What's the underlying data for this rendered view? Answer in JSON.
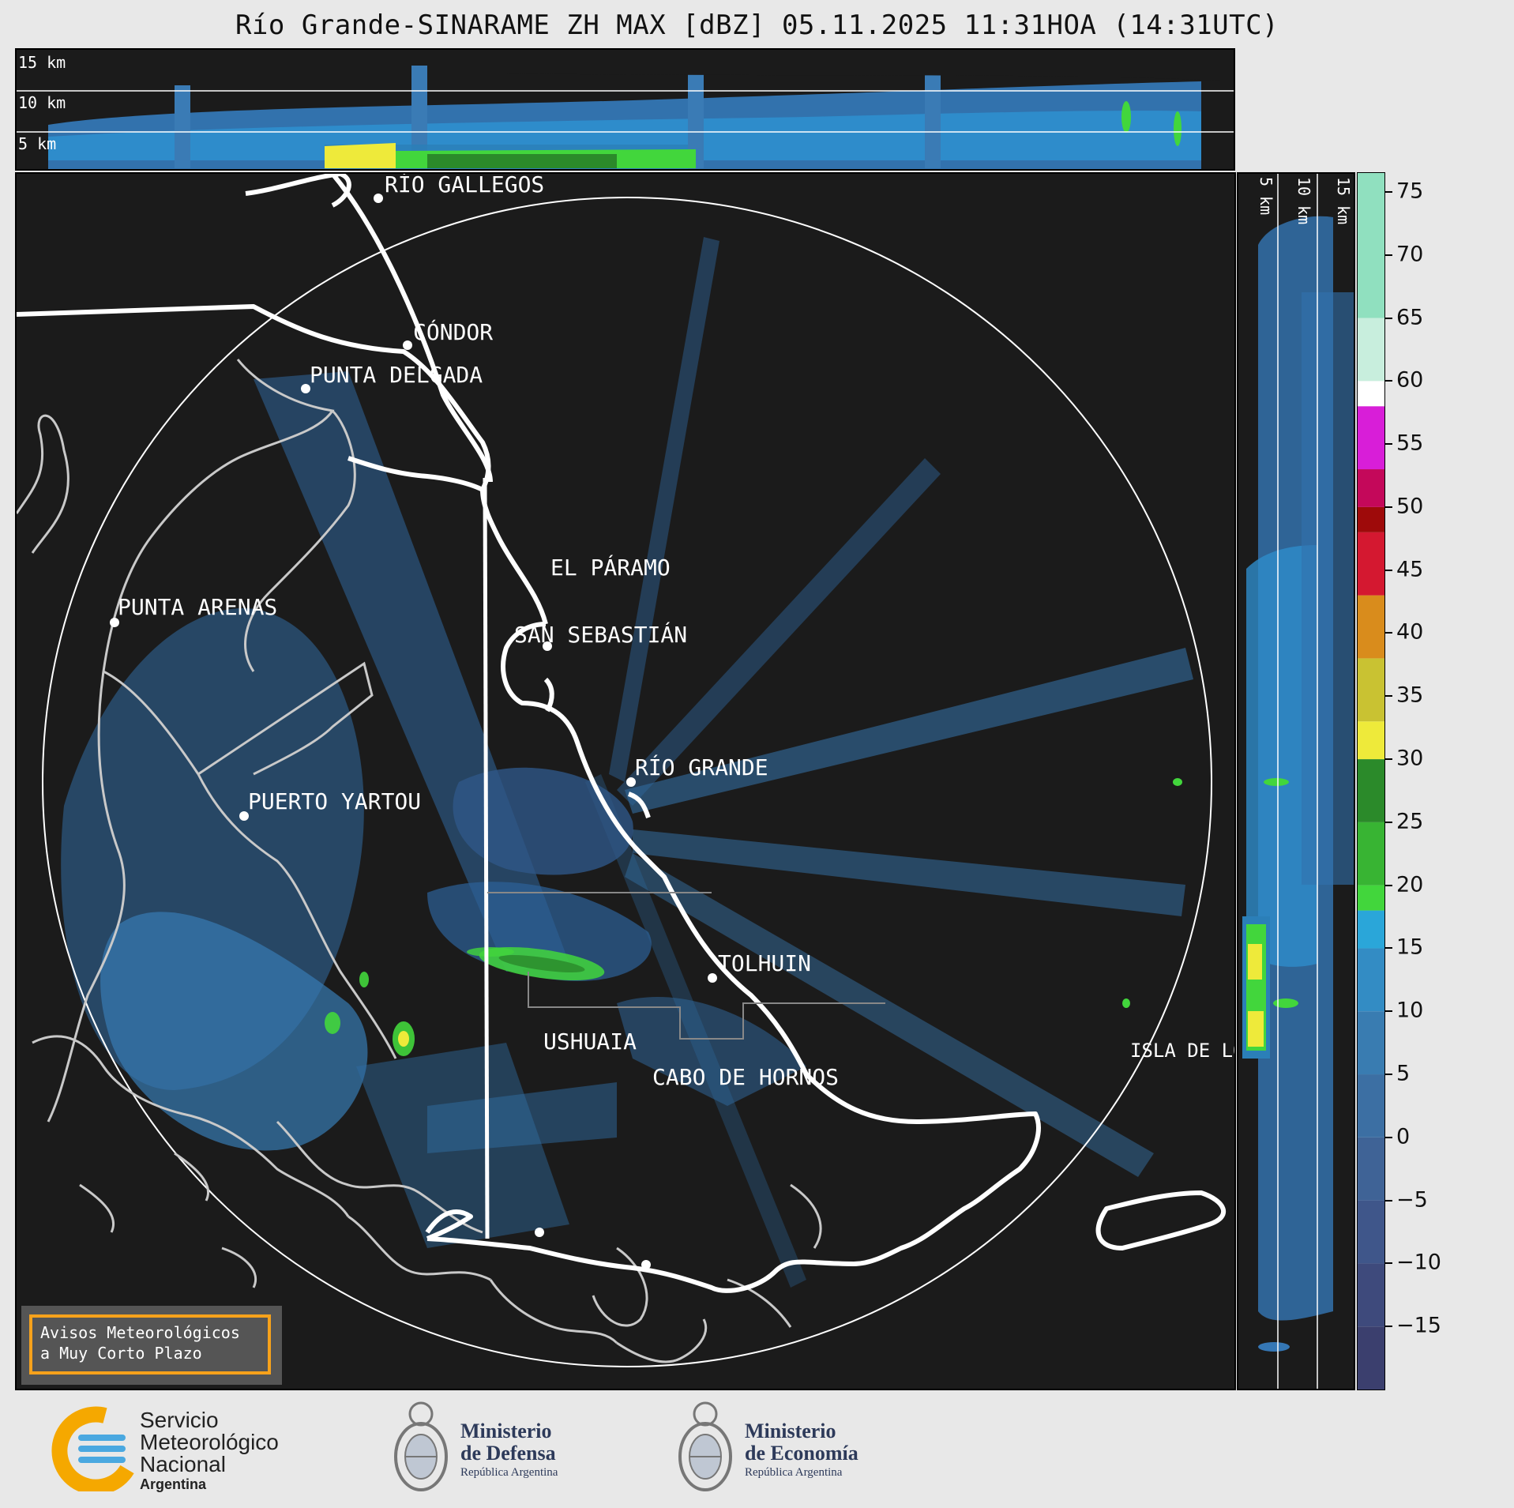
{
  "title": "Río Grande-SINARAME ZH MAX [dBZ] 05.11.2025 11:31HOA (14:31UTC)",
  "top_panel": {
    "height_labels": [
      "15 km",
      "10 km",
      "5 km"
    ]
  },
  "side_panel": {
    "height_labels": [
      "5 km",
      "10 km",
      "15 km"
    ]
  },
  "map": {
    "places": [
      "RÍO GALLEGOS",
      "CÓNDOR",
      "PUNTA DELGADA",
      "EL PÁRAMO",
      "SAN SEBASTIÁN",
      "PUNTA ARENAS",
      "RÍO GRANDE",
      "PUERTO YARTOU",
      "TOLHUIN",
      "USHUAIA",
      "CABO DE HORNOS",
      "ISLA DE LOS ESTADOS"
    ]
  },
  "colorbar": {
    "unit": "dBZ",
    "min": -20,
    "max": 76.5,
    "ticks": [
      "75",
      "70",
      "65",
      "60",
      "55",
      "50",
      "45",
      "40",
      "35",
      "30",
      "25",
      "20",
      "15",
      "10",
      "5",
      "0",
      "−5",
      "−10",
      "−15"
    ],
    "tick_values": [
      75,
      70,
      65,
      60,
      55,
      50,
      45,
      40,
      35,
      30,
      25,
      20,
      15,
      10,
      5,
      0,
      -5,
      -10,
      -15
    ],
    "stops": [
      {
        "from": -20,
        "to": -15,
        "color": "#3b3f6e"
      },
      {
        "from": -15,
        "to": -10,
        "color": "#3e4a7c"
      },
      {
        "from": -10,
        "to": -5,
        "color": "#3f568a"
      },
      {
        "from": -5,
        "to": 0,
        "color": "#3f6396"
      },
      {
        "from": 0,
        "to": 5,
        "color": "#3c6fa3"
      },
      {
        "from": 5,
        "to": 10,
        "color": "#397cb1"
      },
      {
        "from": 10,
        "to": 15,
        "color": "#338cc4"
      },
      {
        "from": 15,
        "to": 18,
        "color": "#2aa6d9"
      },
      {
        "from": 18,
        "to": 20,
        "color": "#42d63c"
      },
      {
        "from": 20,
        "to": 25,
        "color": "#38b433"
      },
      {
        "from": 25,
        "to": 30,
        "color": "#2b8a2a"
      },
      {
        "from": 30,
        "to": 33,
        "color": "#eeea3a"
      },
      {
        "from": 33,
        "to": 38,
        "color": "#c9c232"
      },
      {
        "from": 38,
        "to": 43,
        "color": "#d98c1c"
      },
      {
        "from": 43,
        "to": 48,
        "color": "#d41830"
      },
      {
        "from": 48,
        "to": 50,
        "color": "#9e0a0a"
      },
      {
        "from": 50,
        "to": 53,
        "color": "#c4085a"
      },
      {
        "from": 53,
        "to": 58,
        "color": "#d81ed8"
      },
      {
        "from": 58,
        "to": 60,
        "color": "#ffffff"
      },
      {
        "from": 60,
        "to": 65,
        "color": "#c8eedd"
      },
      {
        "from": 65,
        "to": 76.5,
        "color": "#90e0bf"
      }
    ]
  },
  "alert": {
    "line1": "Avisos Meteorológicos",
    "line2": "a Muy Corto Plazo"
  },
  "logos": {
    "smn": {
      "line1": "Servicio",
      "line2": "Meteorológico",
      "line3": "Nacional",
      "line4": "Argentina"
    },
    "defensa": {
      "line1": "Ministerio",
      "line2": "de Defensa",
      "line3": "República Argentina"
    },
    "economia": {
      "line1": "Ministerio",
      "line2": "de Economía",
      "line3": "República Argentina"
    }
  }
}
